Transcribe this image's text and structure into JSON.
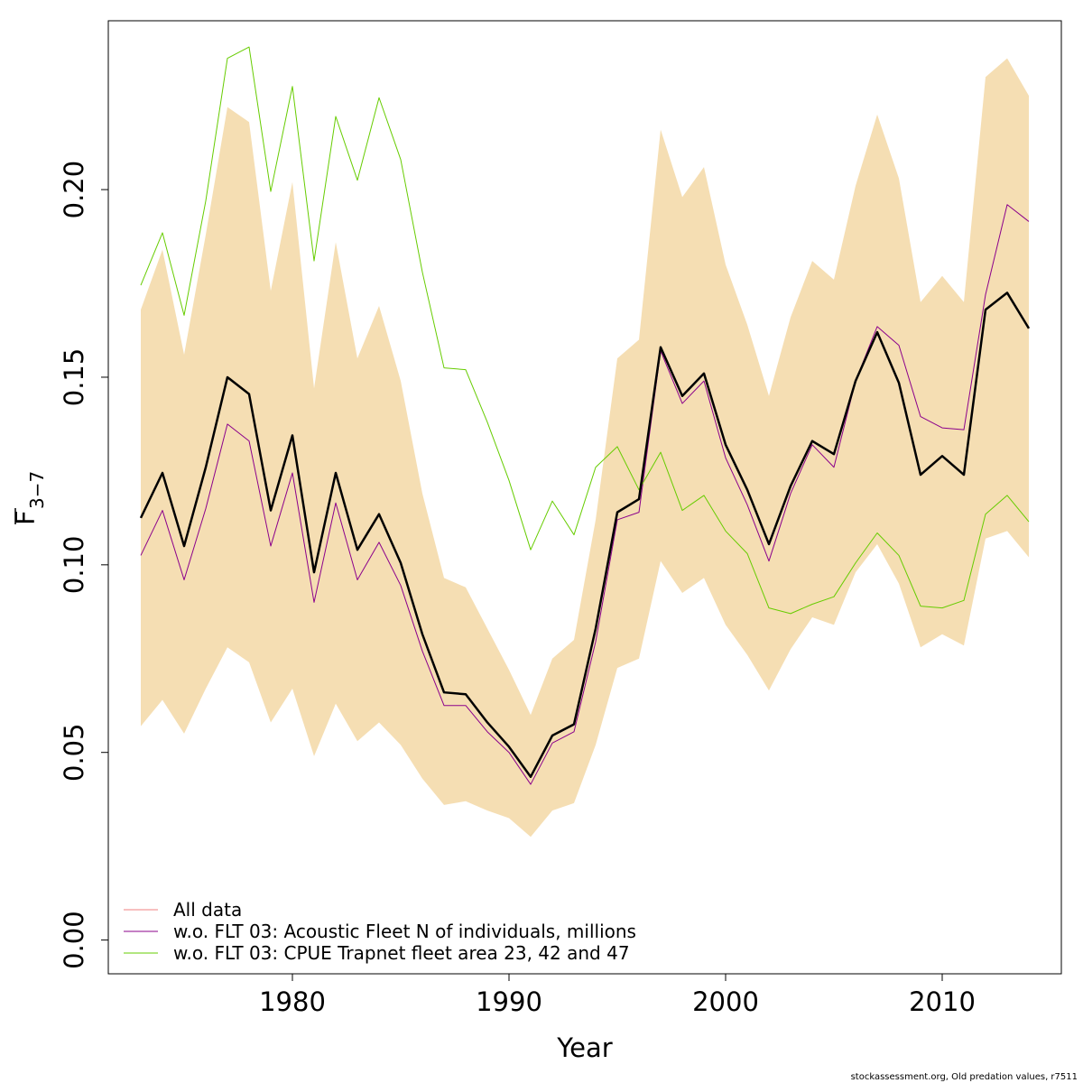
{
  "chart_data": {
    "type": "line",
    "xlabel": "Year",
    "ylabel_main": "F",
    "ylabel_sub": "3−7",
    "xlim": [
      1971.5,
      2015.5
    ],
    "ylim": [
      -0.009,
      0.245
    ],
    "xticks": [
      1980,
      1990,
      2000,
      2010
    ],
    "xtick_labels": [
      "1980",
      "1990",
      "2000",
      "2010"
    ],
    "yticks": [
      0.0,
      0.05,
      0.1,
      0.15,
      0.2
    ],
    "ytick_labels": [
      "0.00",
      "0.05",
      "0.10",
      "0.15",
      "0.20"
    ],
    "grid": false,
    "legend_position": "bottom-left",
    "x": [
      1973,
      1974,
      1975,
      1976,
      1977,
      1978,
      1979,
      1980,
      1981,
      1982,
      1983,
      1984,
      1985,
      1986,
      1987,
      1988,
      1989,
      1990,
      1991,
      1992,
      1993,
      1994,
      1995,
      1996,
      1997,
      1998,
      1999,
      2000,
      2001,
      2002,
      2003,
      2004,
      2005,
      2006,
      2007,
      2008,
      2009,
      2010,
      2011,
      2012,
      2013,
      2014
    ],
    "band": {
      "color": "#F5DEB3",
      "upper": [
        0.168,
        0.184,
        0.156,
        0.188,
        0.222,
        0.218,
        0.173,
        0.202,
        0.147,
        0.186,
        0.155,
        0.169,
        0.149,
        0.119,
        0.0965,
        0.094,
        0.083,
        0.072,
        0.06,
        0.075,
        0.08,
        0.112,
        0.155,
        0.16,
        0.216,
        0.198,
        0.206,
        0.18,
        0.164,
        0.145,
        0.166,
        0.181,
        0.176,
        0.201,
        0.22,
        0.203,
        0.17,
        0.177,
        0.17,
        0.23,
        0.235,
        0.225
      ],
      "lower": [
        0.057,
        0.064,
        0.055,
        0.067,
        0.078,
        0.074,
        0.058,
        0.067,
        0.049,
        0.063,
        0.053,
        0.058,
        0.052,
        0.043,
        0.036,
        0.037,
        0.0345,
        0.0325,
        0.0275,
        0.0345,
        0.0365,
        0.052,
        0.0725,
        0.075,
        0.101,
        0.0925,
        0.0965,
        0.084,
        0.076,
        0.0665,
        0.0775,
        0.086,
        0.084,
        0.098,
        0.1055,
        0.095,
        0.078,
        0.0815,
        0.0785,
        0.107,
        0.109,
        0.102
      ]
    },
    "series": [
      {
        "name": "All data",
        "color": "#000000",
        "legend_color": "#F08080",
        "width": 2.5,
        "values": [
          0.1125,
          0.1245,
          0.105,
          0.126,
          0.15,
          0.1455,
          0.1145,
          0.1345,
          0.098,
          0.1245,
          0.104,
          0.1135,
          0.1005,
          0.0815,
          0.066,
          0.0655,
          0.058,
          0.0515,
          0.0435,
          0.0545,
          0.0575,
          0.083,
          0.114,
          0.1175,
          0.158,
          0.145,
          0.151,
          0.132,
          0.12,
          0.1055,
          0.121,
          0.133,
          0.1295,
          0.149,
          0.162,
          0.1485,
          0.124,
          0.129,
          0.124,
          0.168,
          0.1725,
          0.163
        ]
      },
      {
        "name": "w.o. FLT 03: Acoustic Fleet   N of individuals, millions",
        "color": "#8B008B",
        "width": 1,
        "values": [
          0.1025,
          0.1145,
          0.096,
          0.115,
          0.1375,
          0.133,
          0.105,
          0.1245,
          0.09,
          0.1165,
          0.096,
          0.106,
          0.0945,
          0.077,
          0.0625,
          0.0625,
          0.0555,
          0.05,
          0.0415,
          0.0525,
          0.0555,
          0.0795,
          0.112,
          0.114,
          0.157,
          0.143,
          0.149,
          0.1285,
          0.116,
          0.101,
          0.119,
          0.132,
          0.126,
          0.149,
          0.1635,
          0.1585,
          0.1395,
          0.1365,
          0.136,
          0.172,
          0.196,
          0.1915
        ]
      },
      {
        "name": "w.o. FLT 03: CPUE Trapnet fleet area 23, 42 and 47",
        "color": "#66CC00",
        "width": 1,
        "values": [
          0.1745,
          0.1885,
          0.1665,
          0.197,
          0.235,
          0.238,
          0.1995,
          0.2275,
          0.181,
          0.2195,
          0.2025,
          0.2245,
          0.208,
          0.178,
          0.1525,
          0.152,
          0.138,
          0.1225,
          0.104,
          0.117,
          0.108,
          0.126,
          0.1315,
          0.12,
          0.13,
          0.1145,
          0.1185,
          0.109,
          0.103,
          0.0885,
          0.087,
          0.0895,
          0.0915,
          0.1005,
          0.1085,
          0.1025,
          0.089,
          0.0885,
          0.0905,
          0.1135,
          0.1185,
          0.1115
        ]
      }
    ],
    "footnote": "stockassessment.org, Old predation values, r7511"
  }
}
